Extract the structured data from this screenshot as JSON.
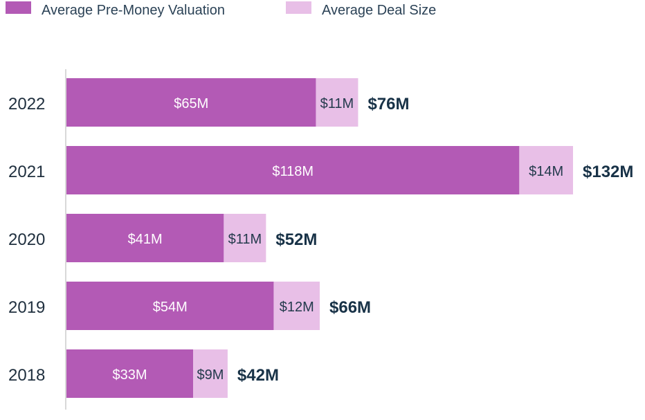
{
  "chart_data": {
    "type": "bar",
    "orientation": "horizontal",
    "stacked": true,
    "categories": [
      "2022",
      "2021",
      "2020",
      "2019",
      "2018"
    ],
    "series": [
      {
        "name": "Average Pre-Money Valuation",
        "values": [
          65,
          118,
          41,
          54,
          33
        ],
        "labels": [
          "$65M",
          "$118M",
          "$41M",
          "$54M",
          "$33M"
        ],
        "color": "#b35ab5"
      },
      {
        "name": "Average Deal Size",
        "values": [
          11,
          14,
          11,
          12,
          9
        ],
        "labels": [
          "$11M",
          "$14M",
          "$11M",
          "$12M",
          "$9M"
        ],
        "color": "#e8bfe7"
      }
    ],
    "totals": {
      "values": [
        76,
        132,
        52,
        66,
        42
      ],
      "labels": [
        "$76M",
        "$132M",
        "$52M",
        "$66M",
        "$42M"
      ]
    },
    "xlim": [
      0,
      132
    ],
    "grid": false,
    "legend_position": "top-left",
    "title": "",
    "xlabel": "",
    "ylabel": ""
  },
  "colors": {
    "axis": "#d8d8d8",
    "legend_text": "#2b4256",
    "year_text": "#1f2f3e",
    "inside_light_text": "#ffffff",
    "inside_dark_text": "#233a4c",
    "total_text": "#183247"
  }
}
